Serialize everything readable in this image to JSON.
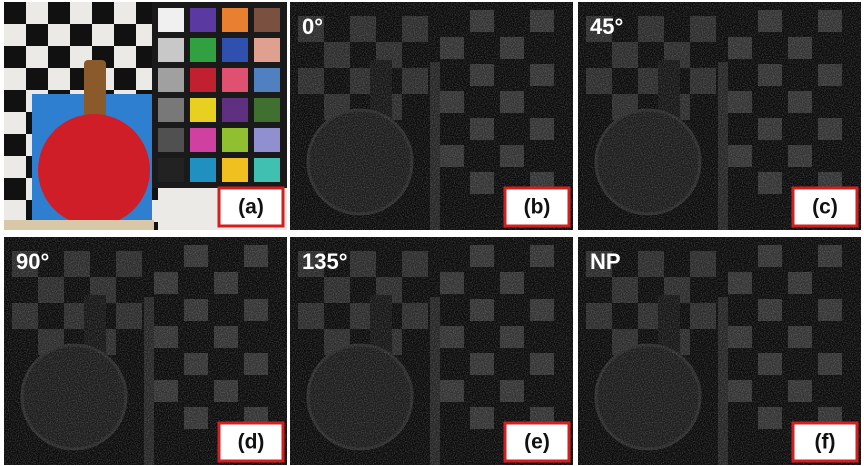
{
  "panels": [
    {
      "label": "(a)"
    },
    {
      "angle": "0°",
      "label": "(b)"
    },
    {
      "angle": "45°",
      "label": "(c)"
    },
    {
      "angle": "90°",
      "label": "(d)"
    },
    {
      "angle": "135°",
      "label": "(e)"
    },
    {
      "angle": "NP",
      "label": "(f)"
    }
  ]
}
